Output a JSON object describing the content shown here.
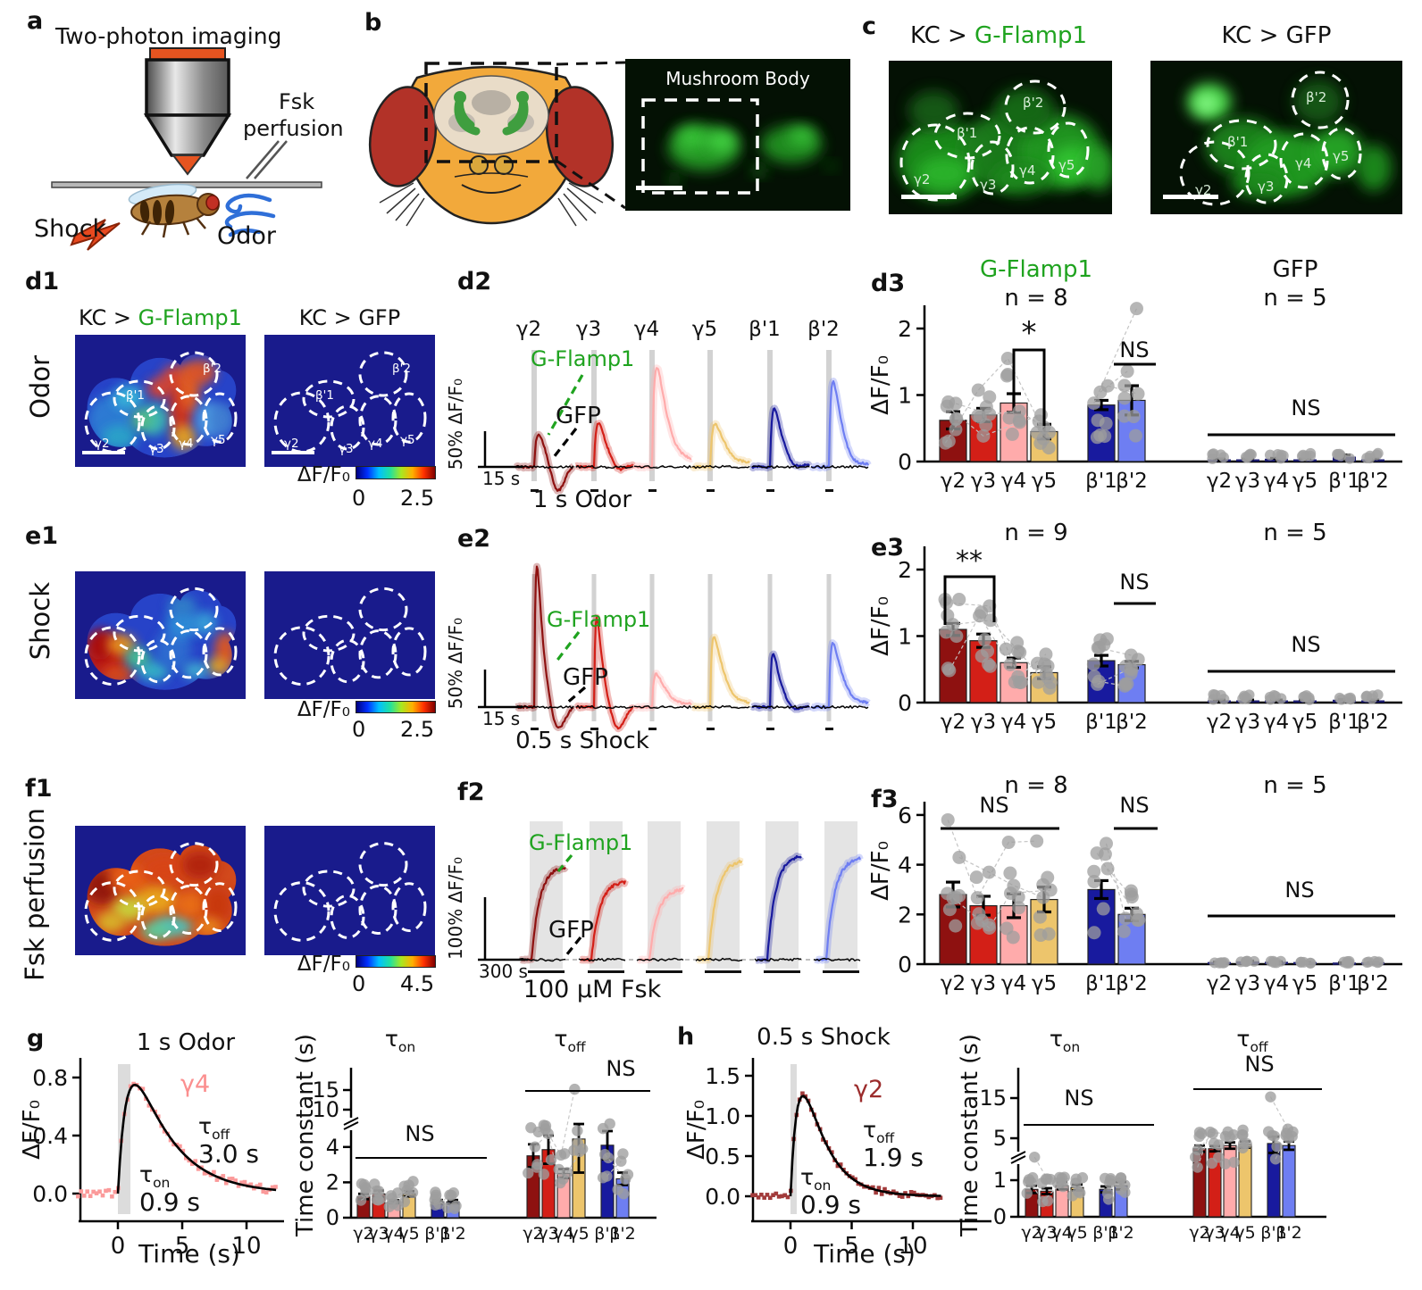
{
  "letters": {
    "a": "a",
    "b": "b",
    "c": "c",
    "d1": "d1",
    "d2": "d2",
    "d3": "d3",
    "e1": "e1",
    "e2": "e2",
    "e3": "e3",
    "f1": "f1",
    "f2": "f2",
    "f3": "f3",
    "g": "g",
    "h": "h"
  },
  "colors": {
    "gamma2": "#8e1110",
    "gamma3": "#d31f17",
    "gamma4": "#ffabab",
    "gamma5": "#edc56c",
    "beta1": "#181a9e",
    "beta2": "#6e7ef2",
    "green": "#1fa31f",
    "heat_bg": "#191b8c",
    "dot_gray": "#9e9e9e"
  },
  "compartments": [
    "γ2",
    "γ3",
    "γ4",
    "γ5",
    "β'1",
    "β'2"
  ],
  "tau_labels": {
    "tau": "τ",
    "on": "on",
    "off": "off"
  },
  "panel_a": {
    "title": "Two-photon imaging",
    "fsk": "Fsk",
    "perfusion": "perfusion",
    "shock": "Shock",
    "odor": "Odor"
  },
  "panel_b": {
    "image_title": "Mushroom Body"
  },
  "titles": {
    "kc_prefix": "KC > ",
    "gflamp": "G-Flamp1",
    "kc_gfp": "KC > GFP"
  },
  "rows": {
    "d": "Odor",
    "e": "Shock",
    "f": "Fsk perfusion"
  },
  "colorbars": {
    "label": "ΔF/F₀",
    "d_min": "0",
    "d_max": "2.5",
    "e_min": "0",
    "e_max": "2.5",
    "f_min": "0",
    "f_max": "4.5"
  },
  "legend": {
    "gflamp": "G-Flamp1",
    "gfp": "GFP"
  },
  "chart_data": [
    {
      "id": "d2",
      "type": "line",
      "compartment_labels": [
        "γ2",
        "γ3",
        "γ4",
        "γ5",
        "β'1",
        "β'2"
      ],
      "scale_y_label": "50% ΔF/F₀",
      "scale_x_label": "15 s",
      "stim_label": "1 s Odor",
      "legend": [
        "G-Flamp1",
        "GFP"
      ],
      "peaks_pct_dff": [
        47,
        62,
        140,
        60,
        81,
        119
      ],
      "undershoot_pct_dff": [
        44,
        15,
        6,
        6,
        10,
        8
      ]
    },
    {
      "id": "e2",
      "type": "line",
      "compartment_labels": [
        "γ2",
        "γ3",
        "γ4",
        "γ5",
        "β'1",
        "β'2"
      ],
      "scale_y_label": "50% ΔF/F₀",
      "scale_x_label": "15 s",
      "stim_label": "0.5 s Shock",
      "legend": [
        "G-Flamp1",
        "GFP"
      ],
      "peaks_pct_dff": [
        187,
        119,
        44,
        94,
        72,
        85
      ],
      "undershoot_pct_dff": [
        36,
        33,
        4,
        6,
        8,
        6
      ]
    },
    {
      "id": "f2",
      "type": "line",
      "compartment_labels": [
        "γ2",
        "γ3",
        "γ4",
        "γ5",
        "β'1",
        "β'2"
      ],
      "scale_y_label": "100% ΔF/F₀",
      "scale_x_label": "300 s",
      "stim_label": "100 μM Fsk",
      "legend": [
        "G-Flamp1",
        "GFP"
      ],
      "plateaus_pct_dff": [
        150,
        126,
        114,
        160,
        168,
        164
      ]
    },
    {
      "id": "d3",
      "type": "bar",
      "group_title": "G-Flamp1",
      "group_title_right": "GFP",
      "n_left": "n = 8",
      "n_right": "n = 5",
      "ylabel": "ΔF/F₀",
      "yticks": [
        0,
        1,
        2
      ],
      "categories": [
        "γ2",
        "γ3",
        "γ4",
        "γ5",
        "β'1",
        "β'2"
      ],
      "values": [
        0.62,
        0.7,
        0.88,
        0.45,
        0.85,
        0.92
      ],
      "errors": [
        0.13,
        0.1,
        0.14,
        0.11,
        0.07,
        0.22
      ],
      "gfp_values": [
        0.02,
        0.02,
        0.03,
        0.02,
        0.06,
        0.02
      ],
      "gfp_errors": [
        0.02,
        0.02,
        0.02,
        0.02,
        0.04,
        0.02
      ],
      "sig": {
        "pair": "*",
        "beta": "NS",
        "gfp": "NS"
      }
    },
    {
      "id": "e3",
      "type": "bar",
      "n_left": "n = 9",
      "n_right": "n = 5",
      "ylabel": "ΔF/F₀",
      "yticks": [
        0,
        1,
        2
      ],
      "categories": [
        "γ2",
        "γ3",
        "γ4",
        "γ5",
        "β'1",
        "β'2"
      ],
      "values": [
        1.1,
        0.93,
        0.6,
        0.45,
        0.63,
        0.57
      ],
      "errors": [
        0.09,
        0.1,
        0.07,
        0.09,
        0.08,
        0.05
      ],
      "gfp_values": [
        0.02,
        0.02,
        0.02,
        0.02,
        0.03,
        0.02
      ],
      "gfp_errors": [
        0.02,
        0.02,
        0.02,
        0.02,
        0.02,
        0.02
      ],
      "sig": {
        "pair": "**",
        "beta": "NS",
        "gfp": "NS"
      }
    },
    {
      "id": "f3",
      "type": "bar",
      "n_left": "n = 8",
      "n_right": "n = 5",
      "ylabel": "ΔF/F₀",
      "yticks": [
        0,
        2,
        4,
        6
      ],
      "categories": [
        "γ2",
        "γ3",
        "γ4",
        "γ5",
        "β'1",
        "β'2"
      ],
      "values": [
        2.8,
        2.35,
        2.35,
        2.6,
        3.0,
        2.0
      ],
      "errors": [
        0.5,
        0.38,
        0.48,
        0.5,
        0.36,
        0.25
      ],
      "gfp_values": [
        0.05,
        0.08,
        0.06,
        0.05,
        0.03,
        0.04
      ],
      "gfp_errors": [
        0.04,
        0.05,
        0.04,
        0.04,
        0.03,
        0.03
      ],
      "sig": {
        "gamma": "NS",
        "beta": "NS",
        "gfp": "NS"
      }
    },
    {
      "id": "g_curve",
      "type": "scatter",
      "title": "1 s Odor",
      "compartment": "γ4",
      "ylabel": "ΔF/F₀",
      "xlabel": "Time (s)",
      "yticks": [
        "0.0",
        "0.4",
        "0.8"
      ],
      "xticks": [
        "0",
        "5",
        "10"
      ],
      "peak_dff": 0.75,
      "tau_on_value": "0.9 s",
      "tau_off_value": "3.0 s",
      "stim_s": 1
    },
    {
      "id": "g_tau",
      "type": "bar",
      "ylabel": "Time constant (s)",
      "yticks": [
        "0",
        "2",
        "4",
        "10",
        "15"
      ],
      "categories": [
        "γ2",
        "γ3",
        "γ4",
        "γ5",
        "β'1",
        "β'2"
      ],
      "tau_on_values": [
        1.2,
        1.35,
        0.9,
        1.35,
        0.9,
        0.9
      ],
      "tau_on_errors": [
        0.15,
        0.18,
        0.08,
        0.15,
        0.1,
        0.1
      ],
      "tau_off_values": [
        3.5,
        3.85,
        2.5,
        4.45,
        4.1,
        2.2
      ],
      "tau_off_errors": [
        0.65,
        0.8,
        0.25,
        1.9,
        0.8,
        0.35
      ],
      "sig_on": "NS",
      "sig_off": "NS"
    },
    {
      "id": "h_curve",
      "type": "scatter",
      "title": "0.5 s Shock",
      "compartment": "γ2",
      "ylabel": "ΔF/F₀",
      "xlabel": "Time (s)",
      "yticks": [
        "0.0",
        "0.5",
        "1.0",
        "1.5"
      ],
      "xticks": [
        "0",
        "5",
        "10"
      ],
      "peak_dff": 1.25,
      "tau_on_value": "0.9 s",
      "tau_off_value": "1.9 s",
      "stim_s": 0.5
    },
    {
      "id": "h_tau",
      "type": "bar",
      "ylabel": "Time constant (s)",
      "yticks": [
        "0",
        "1",
        "5",
        "15"
      ],
      "categories": [
        "γ2",
        "γ3",
        "γ4",
        "γ5",
        "β'1",
        "β'2"
      ],
      "tau_on_values": [
        0.75,
        0.7,
        0.85,
        0.8,
        0.75,
        0.85
      ],
      "tau_on_errors": [
        0.1,
        0.08,
        0.1,
        0.08,
        0.08,
        0.1
      ],
      "tau_off_values": [
        4.0,
        4.0,
        4.3,
        4.4,
        4.5,
        4.3
      ],
      "tau_off_errors": [
        0.3,
        0.25,
        0.3,
        0.3,
        0.9,
        0.4
      ],
      "sig_on": "NS",
      "sig_off": "NS"
    }
  ]
}
